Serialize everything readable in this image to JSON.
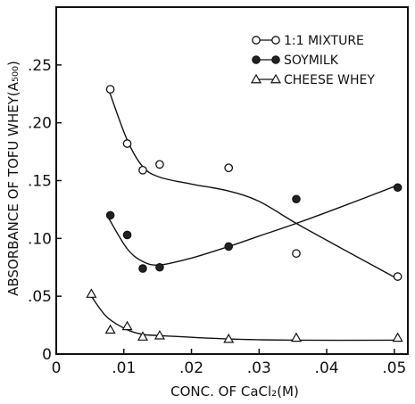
{
  "chart_data": {
    "type": "scatter",
    "xlabel": "CONC. OF CaCl₂(M)",
    "ylabel": "ABSORBANCE OF TOFU WHEY(A₅₀₀)",
    "xlim": [
      0,
      0.052
    ],
    "ylim": [
      0,
      0.3
    ],
    "x_ticks": [
      {
        "value": 0,
        "label": "0"
      },
      {
        "value": 0.01,
        "label": ".01"
      },
      {
        "value": 0.02,
        "label": ".02"
      },
      {
        "value": 0.03,
        "label": ".03"
      },
      {
        "value": 0.04,
        "label": ".04"
      },
      {
        "value": 0.05,
        "label": ".05"
      }
    ],
    "y_ticks": [
      {
        "value": 0,
        "label": "0"
      },
      {
        "value": 0.05,
        "label": ".05"
      },
      {
        "value": 0.1,
        "label": ".10"
      },
      {
        "value": 0.15,
        "label": ".15"
      },
      {
        "value": 0.2,
        "label": ".20"
      },
      {
        "value": 0.25,
        "label": ".25"
      }
    ],
    "grid": false,
    "legend_position": "top-right",
    "series": [
      {
        "name": "1:1 MIXTURE",
        "marker": "open-circle",
        "points": [
          [
            0.008,
            0.229
          ],
          [
            0.0105,
            0.182
          ],
          [
            0.0128,
            0.159
          ],
          [
            0.0153,
            0.164
          ],
          [
            0.0255,
            0.161
          ],
          [
            0.0355,
            0.087
          ],
          [
            0.0505,
            0.067
          ]
        ],
        "curve": [
          [
            0.0078,
            0.228
          ],
          [
            0.0105,
            0.185
          ],
          [
            0.0128,
            0.162
          ],
          [
            0.0153,
            0.153
          ],
          [
            0.02,
            0.147
          ],
          [
            0.0255,
            0.141
          ],
          [
            0.03,
            0.132
          ],
          [
            0.0355,
            0.113
          ],
          [
            0.042,
            0.092
          ],
          [
            0.0505,
            0.065
          ]
        ]
      },
      {
        "name": "SOYMILK",
        "marker": "filled-circle",
        "points": [
          [
            0.008,
            0.12
          ],
          [
            0.0105,
            0.103
          ],
          [
            0.0128,
            0.074
          ],
          [
            0.0153,
            0.075
          ],
          [
            0.0255,
            0.093
          ],
          [
            0.0355,
            0.134
          ],
          [
            0.0505,
            0.144
          ]
        ],
        "curve": [
          [
            0.0078,
            0.117
          ],
          [
            0.0105,
            0.091
          ],
          [
            0.0128,
            0.08
          ],
          [
            0.0153,
            0.077
          ],
          [
            0.02,
            0.083
          ],
          [
            0.0255,
            0.093
          ],
          [
            0.03,
            0.102
          ],
          [
            0.0355,
            0.113
          ],
          [
            0.042,
            0.127
          ],
          [
            0.0505,
            0.146
          ]
        ]
      },
      {
        "name": "CHEESE WHEY",
        "marker": "open-triangle",
        "points": [
          [
            0.0052,
            0.052
          ],
          [
            0.008,
            0.021
          ],
          [
            0.0105,
            0.024
          ],
          [
            0.0128,
            0.015
          ],
          [
            0.0153,
            0.016
          ],
          [
            0.0255,
            0.013
          ],
          [
            0.0355,
            0.014
          ],
          [
            0.0505,
            0.014
          ]
        ],
        "curve": [
          [
            0.0052,
            0.05
          ],
          [
            0.0075,
            0.032
          ],
          [
            0.0105,
            0.021
          ],
          [
            0.0128,
            0.017
          ],
          [
            0.0153,
            0.016
          ],
          [
            0.0255,
            0.013
          ],
          [
            0.0355,
            0.012
          ],
          [
            0.0505,
            0.012
          ]
        ]
      }
    ]
  }
}
